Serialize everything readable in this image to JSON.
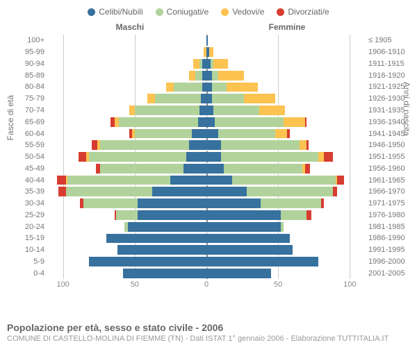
{
  "type": "population-pyramid",
  "legend": [
    {
      "label": "Celibi/Nubili",
      "color": "#37719e"
    },
    {
      "label": "Coniugati/e",
      "color": "#b1d39b"
    },
    {
      "label": "Vedovi/e",
      "color": "#fcc351"
    },
    {
      "label": "Divorziati/e",
      "color": "#d73c30"
    }
  ],
  "headers": {
    "male": "Maschi",
    "female": "Femmine"
  },
  "axis": {
    "left_title": "Fasce di età",
    "right_title": "Anni di nascita",
    "xlim": 110,
    "xticks_m": [
      100,
      50,
      0
    ],
    "xticks_f": [
      0,
      50,
      100
    ],
    "grid_color": "#cccccc",
    "center_color": "#888888"
  },
  "age_labels": [
    "100+",
    "95-99",
    "90-94",
    "85-89",
    "80-84",
    "75-79",
    "70-74",
    "65-69",
    "60-64",
    "55-59",
    "50-54",
    "45-49",
    "40-44",
    "35-39",
    "30-34",
    "25-29",
    "20-24",
    "15-19",
    "10-14",
    "5-9",
    "0-4"
  ],
  "year_labels": [
    "≤ 1905",
    "1906-1910",
    "1911-1915",
    "1916-1920",
    "1921-1925",
    "1926-1930",
    "1931-1935",
    "1936-1940",
    "1941-1945",
    "1946-1950",
    "1951-1955",
    "1956-1960",
    "1961-1965",
    "1966-1970",
    "1971-1975",
    "1976-1980",
    "1981-1985",
    "1986-1990",
    "1991-1995",
    "1996-2000",
    "2001-2005"
  ],
  "series_order": [
    "single",
    "married",
    "widowed",
    "divorced"
  ],
  "series_colors": {
    "single": "#37719e",
    "married": "#b1d39b",
    "widowed": "#fcc351",
    "divorced": "#d73c30"
  },
  "male": [
    {
      "single": 0,
      "married": 0,
      "widowed": 0,
      "divorced": 0
    },
    {
      "single": 0,
      "married": 0,
      "widowed": 2,
      "divorced": 0
    },
    {
      "single": 3,
      "married": 2,
      "widowed": 4,
      "divorced": 0
    },
    {
      "single": 3,
      "married": 5,
      "widowed": 4,
      "divorced": 0
    },
    {
      "single": 3,
      "married": 20,
      "widowed": 5,
      "divorced": 0
    },
    {
      "single": 4,
      "married": 32,
      "widowed": 5,
      "divorced": 0
    },
    {
      "single": 5,
      "married": 45,
      "widowed": 4,
      "divorced": 0
    },
    {
      "single": 6,
      "married": 55,
      "widowed": 3,
      "divorced": 3
    },
    {
      "single": 10,
      "married": 40,
      "widowed": 2,
      "divorced": 2
    },
    {
      "single": 12,
      "married": 62,
      "widowed": 2,
      "divorced": 4
    },
    {
      "single": 14,
      "married": 68,
      "widowed": 2,
      "divorced": 5
    },
    {
      "single": 16,
      "married": 58,
      "widowed": 0,
      "divorced": 3
    },
    {
      "single": 25,
      "married": 72,
      "widowed": 1,
      "divorced": 6
    },
    {
      "single": 38,
      "married": 60,
      "widowed": 0,
      "divorced": 5
    },
    {
      "single": 48,
      "married": 38,
      "widowed": 0,
      "divorced": 2
    },
    {
      "single": 48,
      "married": 15,
      "widowed": 0,
      "divorced": 1
    },
    {
      "single": 55,
      "married": 2,
      "widowed": 0,
      "divorced": 0
    },
    {
      "single": 70,
      "married": 0,
      "widowed": 0,
      "divorced": 0
    },
    {
      "single": 62,
      "married": 0,
      "widowed": 0,
      "divorced": 0
    },
    {
      "single": 82,
      "married": 0,
      "widowed": 0,
      "divorced": 0
    },
    {
      "single": 58,
      "married": 0,
      "widowed": 0,
      "divorced": 0
    }
  ],
  "female": [
    {
      "single": 1,
      "married": 0,
      "widowed": 0,
      "divorced": 0
    },
    {
      "single": 2,
      "married": 0,
      "widowed": 3,
      "divorced": 0
    },
    {
      "single": 3,
      "married": 2,
      "widowed": 10,
      "divorced": 0
    },
    {
      "single": 4,
      "married": 4,
      "widowed": 18,
      "divorced": 0
    },
    {
      "single": 4,
      "married": 10,
      "widowed": 22,
      "divorced": 0
    },
    {
      "single": 4,
      "married": 22,
      "widowed": 22,
      "divorced": 0
    },
    {
      "single": 5,
      "married": 32,
      "widowed": 18,
      "divorced": 0
    },
    {
      "single": 6,
      "married": 48,
      "widowed": 15,
      "divorced": 1
    },
    {
      "single": 8,
      "married": 40,
      "widowed": 8,
      "divorced": 2
    },
    {
      "single": 10,
      "married": 55,
      "widowed": 5,
      "divorced": 1
    },
    {
      "single": 10,
      "married": 68,
      "widowed": 4,
      "divorced": 6
    },
    {
      "single": 12,
      "married": 55,
      "widowed": 2,
      "divorced": 3
    },
    {
      "single": 18,
      "married": 72,
      "widowed": 1,
      "divorced": 5
    },
    {
      "single": 28,
      "married": 60,
      "widowed": 0,
      "divorced": 3
    },
    {
      "single": 38,
      "married": 42,
      "widowed": 0,
      "divorced": 2
    },
    {
      "single": 52,
      "married": 18,
      "widowed": 0,
      "divorced": 3
    },
    {
      "single": 52,
      "married": 2,
      "widowed": 0,
      "divorced": 0
    },
    {
      "single": 58,
      "married": 0,
      "widowed": 0,
      "divorced": 0
    },
    {
      "single": 60,
      "married": 0,
      "widowed": 0,
      "divorced": 0
    },
    {
      "single": 78,
      "married": 0,
      "widowed": 0,
      "divorced": 0
    },
    {
      "single": 45,
      "married": 0,
      "widowed": 0,
      "divorced": 0
    }
  ],
  "footer": {
    "title": "Popolazione per età, sesso e stato civile - 2006",
    "subtitle": "COMUNE DI CASTELLO-MOLINA DI FIEMME (TN) - Dati ISTAT 1° gennaio 2006 - Elaborazione TUTTITALIA.IT"
  }
}
